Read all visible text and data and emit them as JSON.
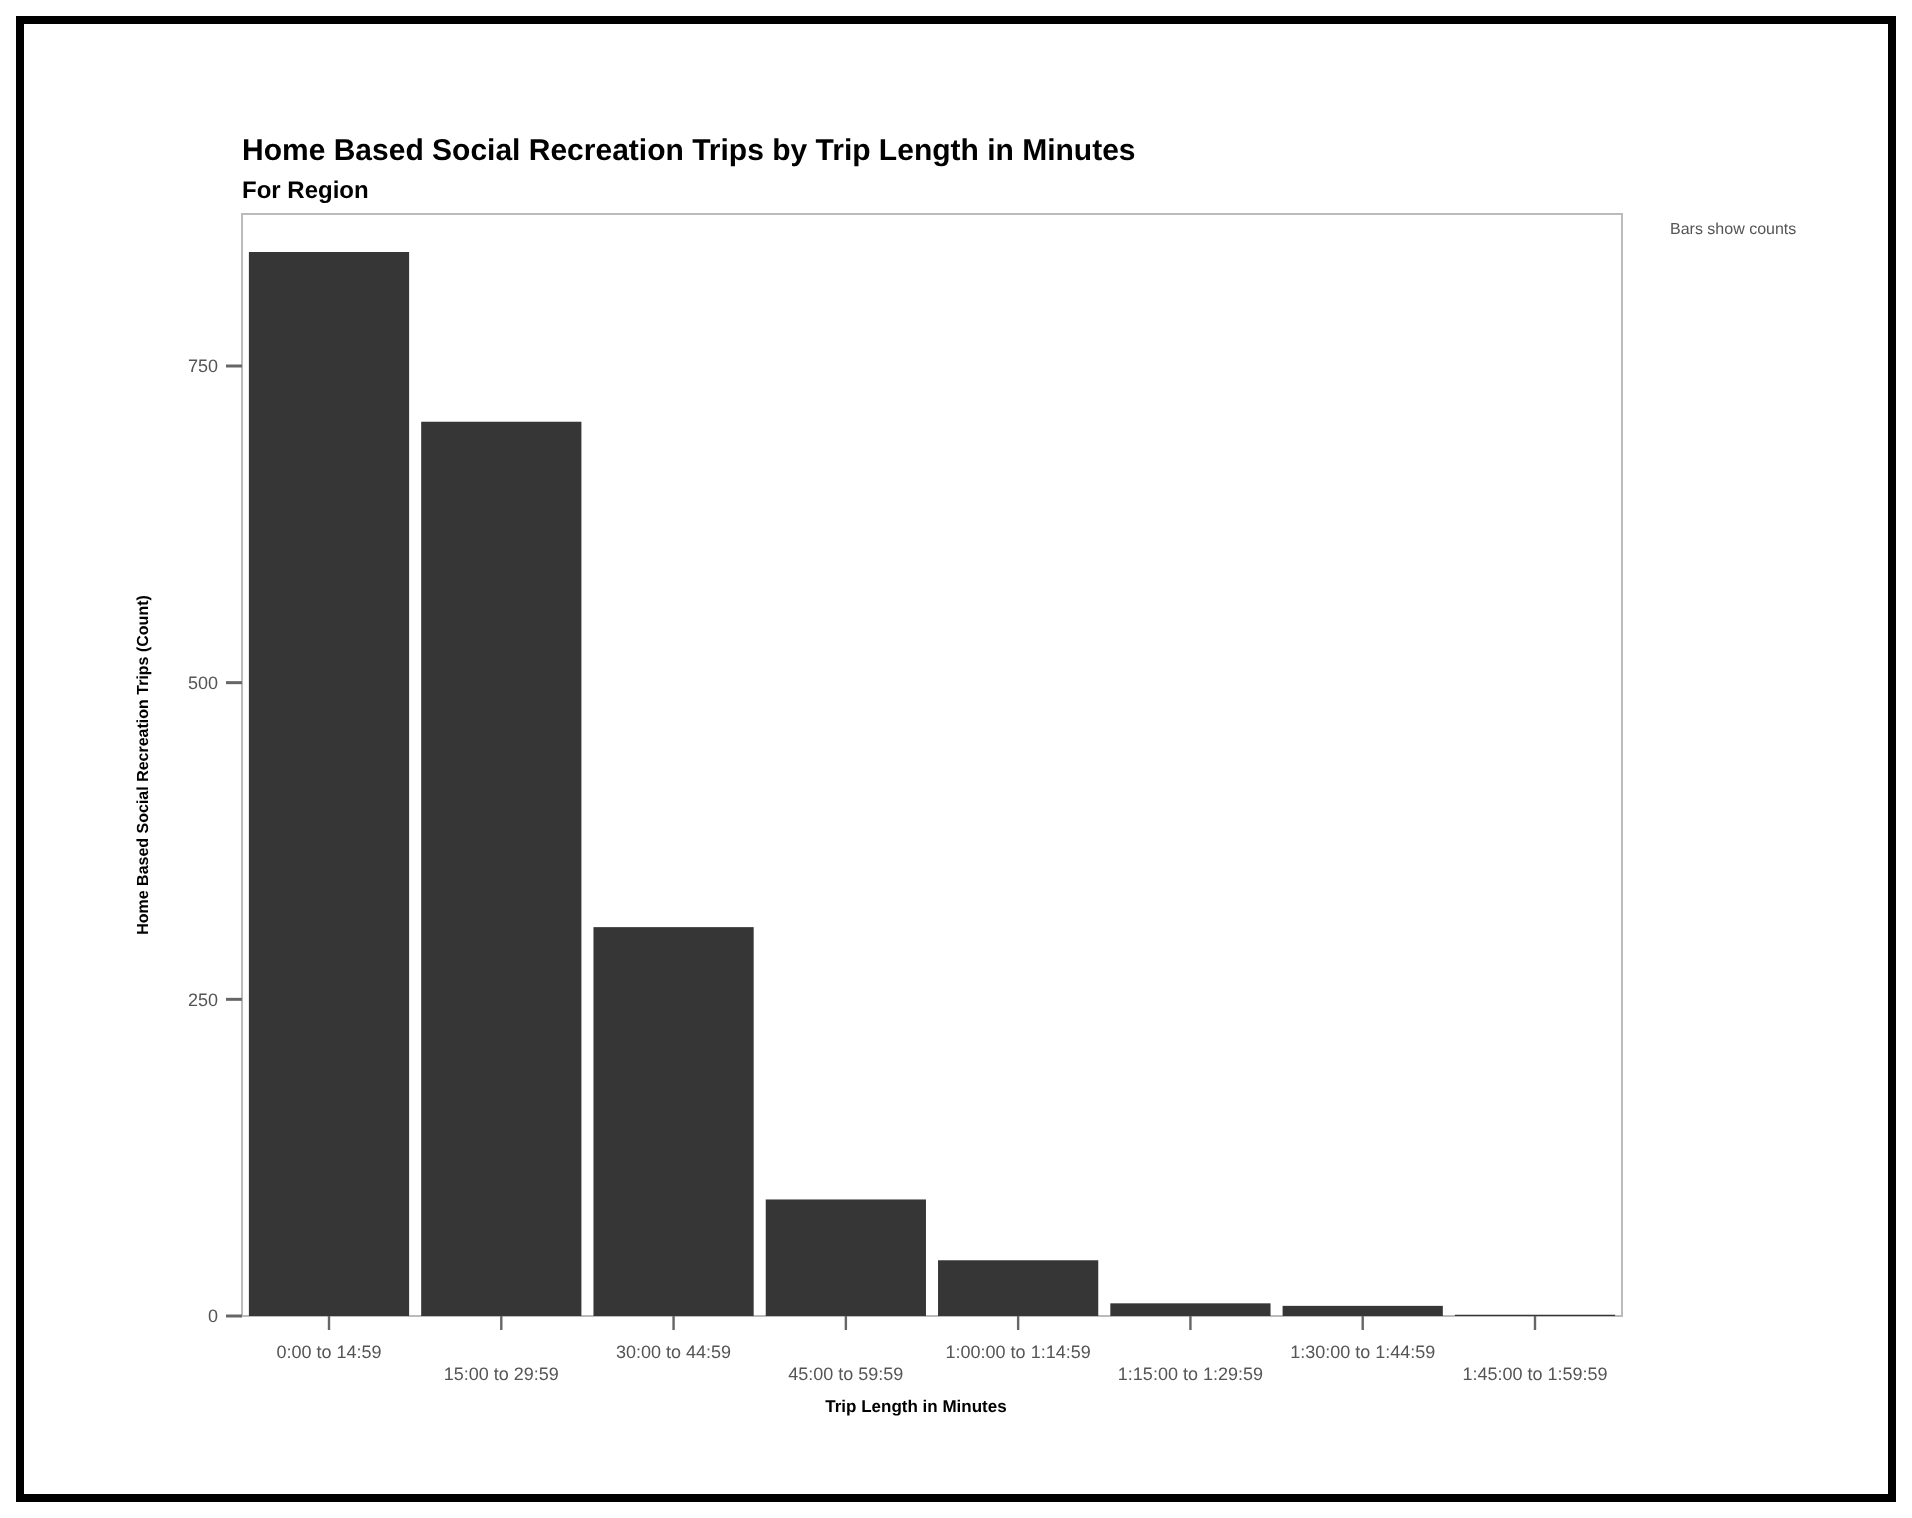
{
  "chart_data": {
    "type": "bar",
    "title": "Home Based Social Recreation Trips by Trip Length in Minutes",
    "subtitle": "For Region",
    "xlabel": "Trip Length in Minutes",
    "ylabel": "Home Based Social Recreation Trips (Count)",
    "annotations": [
      "Bars show counts"
    ],
    "categories": [
      "0:00 to 14:59",
      "15:00 to 29:59",
      "30:00 to 44:59",
      "45:00 to 59:59",
      "1:00:00 to 1:14:59",
      "1:15:00 to 1:29:59",
      "1:30:00 to 1:44:59",
      "1:45:00 to 1:59:59"
    ],
    "values": [
      840,
      706,
      307,
      92,
      44,
      10,
      8,
      1
    ],
    "color": "#363636",
    "ylim": [
      0,
      870
    ],
    "yticks": [
      0,
      250,
      500,
      750
    ],
    "grid": false
  }
}
